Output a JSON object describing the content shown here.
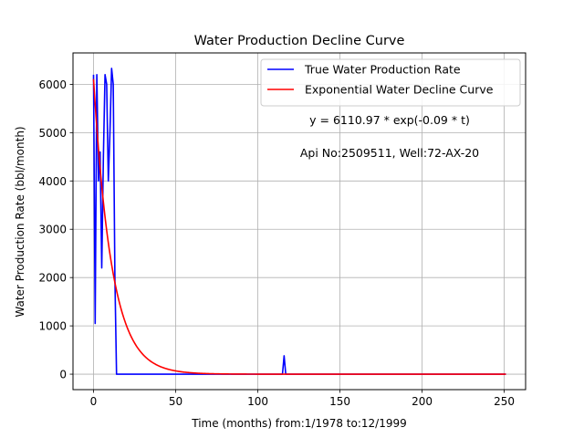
{
  "chart_data": {
    "type": "line",
    "title": "Water Production Decline Curve",
    "xlabel": "Time (months) from:1/1978 to:12/1999",
    "ylabel": "Water Production Rate (bbl/month)",
    "xlim": [
      -12.5,
      263
    ],
    "ylim": [
      -320,
      6650
    ],
    "xticks": [
      0,
      50,
      100,
      150,
      200,
      250
    ],
    "yticks": [
      0,
      1000,
      2000,
      3000,
      4000,
      5000,
      6000
    ],
    "grid": true,
    "legend_position": "top-right",
    "series": [
      {
        "name": "True Water Production Rate",
        "color": "#0000ff",
        "x": [
          0,
          1,
          2,
          3,
          4,
          5,
          6,
          7,
          8,
          9,
          10,
          11,
          12,
          13,
          14,
          15,
          20,
          40,
          60,
          80,
          100,
          115,
          116,
          117,
          118,
          150,
          200,
          251
        ],
        "y": [
          6200,
          1050,
          6200,
          4000,
          4600,
          2200,
          4500,
          6200,
          6000,
          4000,
          5000,
          6330,
          6000,
          2000,
          0,
          0,
          0,
          0,
          0,
          0,
          0,
          0,
          380,
          0,
          0,
          0,
          0,
          0
        ]
      },
      {
        "name": "Exponential Water Decline Curve",
        "color": "#ff0000",
        "model": {
          "a": 6110.97,
          "b": 0.09
        },
        "x_range": [
          0,
          251
        ]
      }
    ],
    "annotations": [
      "y = 6110.97 * exp(-0.09 * t)",
      "Api No:2509511, Well:72-AX-20"
    ]
  }
}
